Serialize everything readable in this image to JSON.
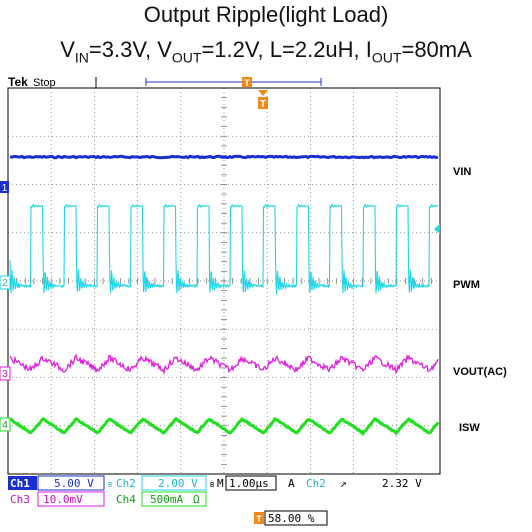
{
  "title": {
    "line1": "Output Ripple(light Load)",
    "vin_label": "V",
    "vin_sub": "IN",
    "vin_value": "=3.3V, ",
    "vout_label": "V",
    "vout_sub": "OUT",
    "vout_value": "=1.2V, L=2.2uH, ",
    "iout_label": "I",
    "iout_sub": "OUT",
    "iout_value": "=80mA"
  },
  "scope": {
    "brand": "Tek",
    "status": "Stop",
    "trigger_marker": "T",
    "channel_labels": {
      "vin": "VIN",
      "pwm": "PWM",
      "vout": "VOUT(AC)",
      "isw": "ISW"
    },
    "channel_markers": [
      "1",
      "2",
      "3",
      "4"
    ],
    "settings": {
      "ch1_label": "Ch1",
      "ch1_scale": "5.00 V",
      "ch2_label": "Ch2",
      "ch2_scale": "2.00 V",
      "ch3_label": "Ch3",
      "ch3_scale": "10.0mV",
      "ch4_label": "Ch4",
      "ch4_scale": "500mA",
      "ch4_unit": "Ω",
      "bw_mark": "B",
      "timebase_prefix": "M",
      "timebase": "1.00µs",
      "trigger_mode": "A",
      "trigger_channel": "Ch2",
      "trigger_slope": "↗",
      "trigger_level": "2.32 V",
      "trigger_position": "58.00 %"
    },
    "colors": {
      "ch1": "#1b2fd0",
      "ch2": "#1fd6e8",
      "ch3": "#e01ee0",
      "ch4": "#1ee01e",
      "trigger": "#f28a1a",
      "grid": "#7a7a7a"
    }
  }
}
